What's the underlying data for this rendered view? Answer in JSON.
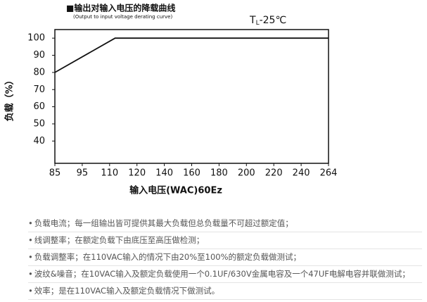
{
  "chart_data": {
    "type": "line",
    "title": "■输出对输入电压的降载曲线",
    "subtitle": "(Output to input voltage derating curve)",
    "annotation": {
      "main": "T",
      "sub": "L",
      "rest": "-25℃"
    },
    "y_label": "负载（%）",
    "x_label": "输入电压(WAC)60Ez",
    "x": [
      85,
      112,
      264
    ],
    "series": [
      {
        "color": "#111111",
        "values": [
          80,
          100,
          100
        ]
      }
    ],
    "xlim": [
      85,
      264
    ],
    "xticks": [
      85,
      95,
      110,
      120,
      140,
      160,
      180,
      200,
      220,
      240,
      264
    ],
    "ylim": [
      27,
      105
    ],
    "yticks": [
      40,
      50,
      60,
      70,
      80,
      90,
      100
    ]
  },
  "notes": [
    "负载电流；每一组输出皆可提供其最大负载但总负载量不可超过额定值；",
    "线调整率；在额定负载下由底压至高压做检测；",
    "负载调整率；在110VAC输入的情况下由20%至100%的额定负载做测试；",
    "波纹&噪音；在10VAC输入及额定负载使用一个0.1UF/630V金属电容及一个47UF电解电容并联做测试；",
    "效率；是在110VAC输入及额定负载情况下做测试。"
  ]
}
